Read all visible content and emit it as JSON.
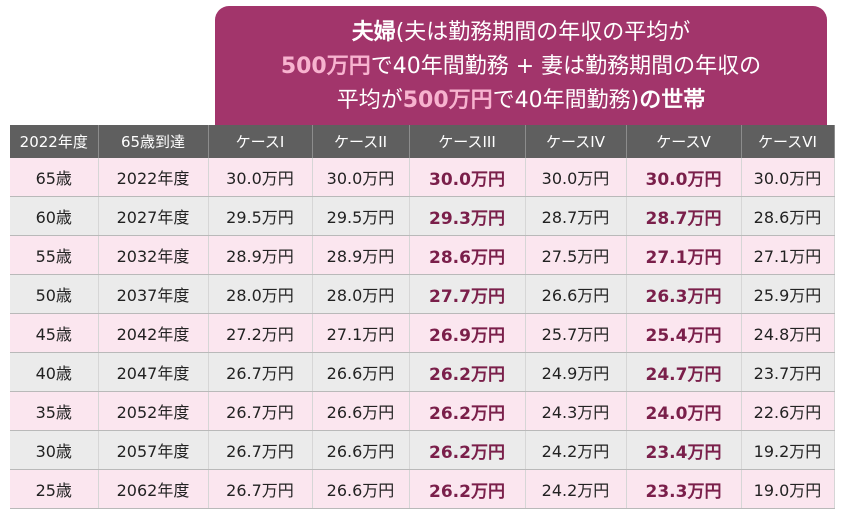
{
  "title": {
    "line1_bold": "夫婦",
    "line1_normal": "(夫は勤務期間の年収の平均が",
    "line2_pink": "500万円",
    "line2_normal": "で40年間勤務 + 妻は勤務期間の年収の",
    "line3_normal_a": "平均が",
    "line3_pink": "500万円",
    "line3_normal_b": "で40年間勤務)",
    "line3_bold": "の世帯"
  },
  "table": {
    "headers": [
      "2022年度",
      "65歳到達",
      "ケースI",
      "ケースII",
      "ケースIII",
      "ケースIV",
      "ケースV",
      "ケースVI"
    ],
    "rows": [
      [
        "65歳",
        "2022年度",
        "30.0万円",
        "30.0万円",
        "30.0万円",
        "30.0万円",
        "30.0万円",
        "30.0万円"
      ],
      [
        "60歳",
        "2027年度",
        "29.5万円",
        "29.5万円",
        "29.3万円",
        "28.7万円",
        "28.7万円",
        "28.6万円"
      ],
      [
        "55歳",
        "2032年度",
        "28.9万円",
        "28.9万円",
        "28.6万円",
        "27.5万円",
        "27.1万円",
        "27.1万円"
      ],
      [
        "50歳",
        "2037年度",
        "28.0万円",
        "28.0万円",
        "27.7万円",
        "26.6万円",
        "26.3万円",
        "25.9万円"
      ],
      [
        "45歳",
        "2042年度",
        "27.2万円",
        "27.1万円",
        "26.9万円",
        "25.7万円",
        "25.4万円",
        "24.8万円"
      ],
      [
        "40歳",
        "2047年度",
        "26.7万円",
        "26.6万円",
        "26.2万円",
        "24.9万円",
        "24.7万円",
        "23.7万円"
      ],
      [
        "35歳",
        "2052年度",
        "26.7万円",
        "26.6万円",
        "26.2万円",
        "24.3万円",
        "24.0万円",
        "22.6万円"
      ],
      [
        "30歳",
        "2057年度",
        "26.7万円",
        "26.6万円",
        "26.2万円",
        "24.2万円",
        "23.4万円",
        "19.2万円"
      ],
      [
        "25歳",
        "2062年度",
        "26.7万円",
        "26.6万円",
        "26.2万円",
        "24.2万円",
        "23.3万円",
        "19.0万円"
      ]
    ]
  },
  "colors": {
    "banner": "#a2356b",
    "highlight_text": "#7a1f4a",
    "row_pink": "#fbe6ef",
    "row_gray": "#ebebeb",
    "header": "#5f5f5f"
  }
}
